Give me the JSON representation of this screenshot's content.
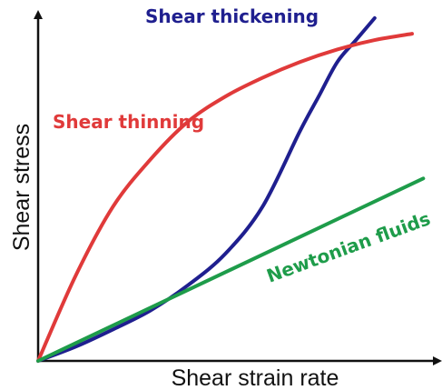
{
  "chart_data": {
    "type": "line",
    "xlabel": "Shear strain rate",
    "ylabel": "Shear stress",
    "xlim": [
      0,
      10
    ],
    "ylim": [
      0,
      10
    ],
    "grid": false,
    "legend": "none",
    "series": [
      {
        "name": "Shear thickening",
        "color": "#1f1f8f",
        "x": [
          0,
          1,
          2,
          3,
          4,
          5,
          6,
          7,
          7.5,
          8,
          8.5,
          9
        ],
        "y": [
          0,
          0.45,
          1.0,
          1.6,
          2.4,
          3.4,
          4.9,
          7.3,
          8.4,
          9.5,
          10.2,
          10.9
        ]
      },
      {
        "name": "Shear thinning",
        "color": "#e03a3a",
        "x": [
          0,
          1,
          2,
          3,
          4,
          5,
          6,
          7,
          8,
          9,
          10
        ],
        "y": [
          0,
          2.7,
          4.9,
          6.4,
          7.6,
          8.4,
          9.0,
          9.5,
          9.9,
          10.2,
          10.4
        ]
      },
      {
        "name": "Newtonian fluids",
        "color": "#1e9c4a",
        "x": [
          0,
          10.3
        ],
        "y": [
          0,
          5.8
        ]
      }
    ]
  }
}
